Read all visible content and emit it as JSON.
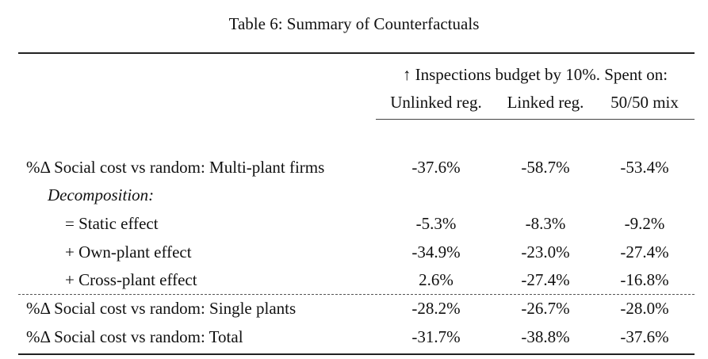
{
  "caption": "Table 6: Summary of Counterfactuals",
  "header": {
    "span_label": "↑ Inspections budget by 10%. Spent on:",
    "columns": [
      "Unlinked reg.",
      "Linked reg.",
      "50/50 mix"
    ]
  },
  "rows": [
    {
      "label": "%Δ Social cost vs random: Multi-plant firms",
      "values": [
        "-37.6%",
        "-58.7%",
        "-53.4%"
      ]
    },
    {
      "label": "Decomposition:",
      "values": []
    },
    {
      "label": "= Static effect",
      "values": [
        "-5.3%",
        "-8.3%",
        "-9.2%"
      ]
    },
    {
      "label": "+ Own-plant effect",
      "values": [
        "-34.9%",
        "-23.0%",
        "-27.4%"
      ]
    },
    {
      "label": "+ Cross-plant effect",
      "values": [
        "2.6%",
        "-27.4%",
        "-16.8%"
      ]
    },
    {
      "label": "%Δ Social cost vs random: Single plants",
      "values": [
        "-28.2%",
        "-26.7%",
        "-28.0%"
      ]
    },
    {
      "label": "%Δ Social cost vs random: Total",
      "values": [
        "-31.7%",
        "-38.8%",
        "-37.6%"
      ]
    }
  ]
}
